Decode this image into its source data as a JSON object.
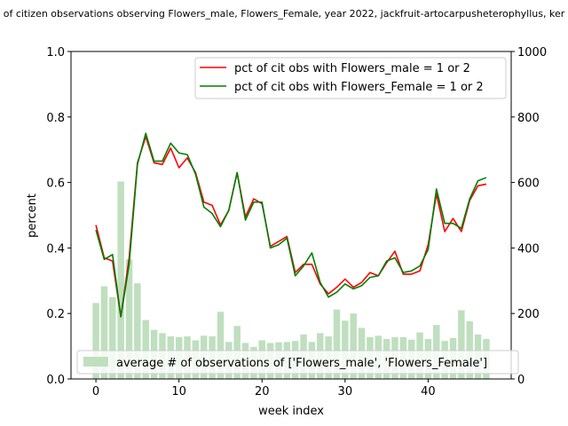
{
  "chart_data": {
    "type": "line",
    "title": "of citizen observations observing Flowers_male, Flowers_Female, year 2022, jackfruit-artocarpusheterophyllus, ker",
    "xlabel": "week index",
    "ylabel": "percent",
    "xlim": [
      -3,
      50
    ],
    "ylim": [
      0,
      1.0
    ],
    "y2lim": [
      0,
      1000
    ],
    "x_ticks": [
      0,
      10,
      20,
      30,
      40
    ],
    "y_ticks": [
      "0.0",
      "0.2",
      "0.4",
      "0.6",
      "0.8",
      "1.0"
    ],
    "y2_ticks": [
      "0",
      "200",
      "400",
      "600",
      "800",
      "1000"
    ],
    "legend_position": "top-right",
    "bar_legend_position": "lower-center",
    "weeks": [
      0,
      1,
      2,
      3,
      4,
      5,
      6,
      7,
      8,
      9,
      10,
      11,
      12,
      13,
      14,
      15,
      16,
      17,
      18,
      19,
      20,
      21,
      22,
      23,
      24,
      25,
      26,
      27,
      28,
      29,
      30,
      31,
      32,
      33,
      34,
      35,
      36,
      37,
      38,
      39,
      40,
      41,
      42,
      43,
      44,
      45,
      46,
      47
    ],
    "series": [
      {
        "name": "pct of cit obs with Flowers_male = 1 or 2",
        "color": "#ff0000",
        "axis": "left",
        "values": [
          0.47,
          0.37,
          0.36,
          0.19,
          0.37,
          0.66,
          0.74,
          0.66,
          0.655,
          0.705,
          0.645,
          0.675,
          0.63,
          0.54,
          0.53,
          0.47,
          0.515,
          0.63,
          0.495,
          0.55,
          0.535,
          0.405,
          0.42,
          0.435,
          0.325,
          0.35,
          0.35,
          0.29,
          0.26,
          0.28,
          0.305,
          0.28,
          0.295,
          0.325,
          0.315,
          0.355,
          0.39,
          0.32,
          0.32,
          0.33,
          0.41,
          0.565,
          0.45,
          0.49,
          0.45,
          0.545,
          0.59,
          0.595
        ]
      },
      {
        "name": "pct of cit obs with Flowers_Female = 1 or 2",
        "color": "#008000",
        "axis": "left",
        "values": [
          0.455,
          0.365,
          0.38,
          0.19,
          0.35,
          0.655,
          0.75,
          0.665,
          0.665,
          0.72,
          0.69,
          0.685,
          0.625,
          0.525,
          0.505,
          0.465,
          0.515,
          0.63,
          0.485,
          0.54,
          0.54,
          0.4,
          0.41,
          0.43,
          0.315,
          0.345,
          0.385,
          0.295,
          0.25,
          0.265,
          0.29,
          0.275,
          0.285,
          0.31,
          0.315,
          0.36,
          0.37,
          0.325,
          0.33,
          0.345,
          0.395,
          0.58,
          0.475,
          0.475,
          0.46,
          0.55,
          0.605,
          0.615
        ]
      },
      {
        "name": "average # of observations of ['Flowers_male', 'Flowers_Female']",
        "type": "bar",
        "color": "#bfdfbf",
        "axis": "right",
        "values": [
          232,
          283,
          250,
          603,
          365,
          292,
          180,
          150,
          140,
          130,
          128,
          130,
          118,
          132,
          130,
          205,
          113,
          162,
          110,
          98,
          118,
          110,
          112,
          113,
          116,
          136,
          113,
          140,
          130,
          212,
          178,
          200,
          156,
          128,
          132,
          122,
          128,
          128,
          120,
          142,
          122,
          165,
          116,
          125,
          210,
          176,
          136,
          122
        ]
      }
    ]
  }
}
